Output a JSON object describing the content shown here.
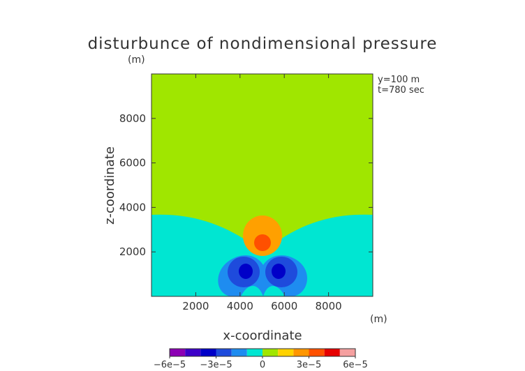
{
  "chart_data": {
    "type": "heatmap",
    "title": "disturbunce of nondimensional pressure",
    "xlabel": "x-coordinate",
    "ylabel": "z-coordinate",
    "x_unit": "(m)",
    "y_unit": "(m)",
    "xlim": [
      0,
      10000
    ],
    "ylim": [
      0,
      10000
    ],
    "x_ticks": [
      2000,
      4000,
      6000,
      8000
    ],
    "y_ticks": [
      2000,
      4000,
      6000,
      8000
    ],
    "x_tick_labels": [
      "2000",
      "4000",
      "6000",
      "8000"
    ],
    "y_tick_labels": [
      "2000",
      "4000",
      "6000",
      "8000"
    ],
    "annotations": [
      "y=100  m",
      "t=780  sec"
    ],
    "grid": false,
    "colorbar": {
      "levels": [
        -6e-05,
        -5e-05,
        -4e-05,
        -3e-05,
        -2e-05,
        -1e-05,
        0,
        1e-05,
        2e-05,
        3e-05,
        4e-05,
        5e-05,
        6e-05
      ],
      "colors": [
        "#8c00b4",
        "#3c00c8",
        "#0000c8",
        "#1e4bdc",
        "#1e8cf0",
        "#00e6d2",
        "#a0e600",
        "#ffd200",
        "#ff9600",
        "#ff5000",
        "#e60000",
        "#f5a0a0"
      ],
      "tick_values": [
        -6e-05,
        -3e-05,
        0,
        3e-05,
        6e-05
      ],
      "tick_labels": [
        "−6e−5",
        "−3e−5",
        "0",
        "3e−5",
        "6e−5"
      ]
    },
    "field_description_levels": {
      "upper_region": "0 to 1e-5",
      "lower_region": "-1e-5 to 0",
      "positive_lobe_center": [
        5000,
        2300
      ],
      "negative_lobe_centers": [
        [
          4300,
          1100
        ],
        [
          5700,
          1100
        ]
      ],
      "peak_positive": "2e-5 to 3e-5",
      "peak_negative": "-4e-5 to -3e-5"
    }
  }
}
